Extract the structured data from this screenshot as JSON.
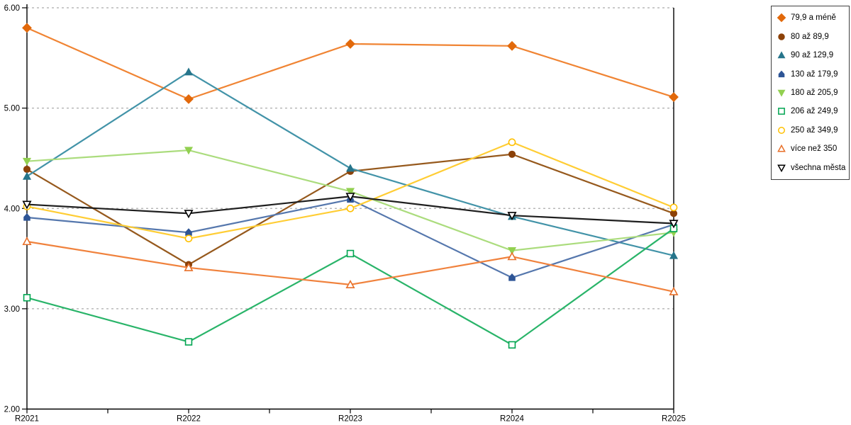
{
  "chart_data": {
    "type": "line",
    "title": "",
    "xlabel": "",
    "ylabel": "",
    "categories": [
      "R2021",
      "R2022",
      "R2023",
      "R2024",
      "R2025"
    ],
    "ylim": [
      2.0,
      6.0
    ],
    "ytick_step": 1.0,
    "ytick_labels": [
      "6.00",
      "5.00",
      "4.00",
      "3.00",
      "2.00"
    ],
    "grid": "horizontal-dashed",
    "gridline_color": "#ababab",
    "axis_color": "#000000",
    "legend_position": "top-right-outside",
    "series": [
      {
        "name": "79,9 a méně",
        "marker": "diamond",
        "marker_style": "filled",
        "marker_color": "#e2690b",
        "line_color": "#f08433",
        "values": [
          5.8,
          5.09,
          5.64,
          5.62,
          5.11
        ]
      },
      {
        "name": "80 až 89,9",
        "marker": "circle",
        "marker_style": "filled",
        "marker_color": "#8c4108",
        "line_color": "#96591d",
        "values": [
          4.39,
          3.44,
          4.37,
          4.54,
          3.95
        ]
      },
      {
        "name": "90 až 129,9",
        "marker": "triangle-up",
        "marker_style": "filled",
        "marker_color": "#26758b",
        "line_color": "#4293a8",
        "values": [
          4.32,
          5.36,
          4.4,
          3.92,
          3.53
        ]
      },
      {
        "name": "130 až 179,9",
        "marker": "pentagon-up",
        "marker_style": "filled",
        "marker_color": "#2e5596",
        "line_color": "#5577ad",
        "values": [
          3.91,
          3.76,
          4.09,
          3.31,
          3.84
        ]
      },
      {
        "name": "180 až 205,9",
        "marker": "triangle-down",
        "marker_style": "filled",
        "marker_color": "#92d050",
        "line_color": "#abdc7d",
        "values": [
          4.47,
          4.58,
          4.17,
          3.58,
          3.76
        ]
      },
      {
        "name": "206 až 249,9",
        "marker": "square",
        "marker_style": "open",
        "marker_color": "#00a551",
        "line_color": "#29b469",
        "values": [
          3.11,
          2.67,
          3.55,
          2.64,
          3.8
        ]
      },
      {
        "name": "250 až 349,9",
        "marker": "circle",
        "marker_style": "open",
        "marker_color": "#ffc000",
        "line_color": "#ffcd34",
        "values": [
          4.02,
          3.7,
          4.0,
          4.66,
          4.01
        ]
      },
      {
        "name": "více než 350",
        "marker": "triangle-up",
        "marker_style": "open",
        "marker_color": "#e8702a",
        "line_color": "#f0823d",
        "values": [
          3.67,
          3.41,
          3.24,
          3.52,
          3.17
        ]
      },
      {
        "name": "všechna města",
        "marker": "triangle-down",
        "marker_style": "open",
        "marker_color": "#000000",
        "line_color": "#1f1f1f",
        "values": [
          4.04,
          3.95,
          4.12,
          3.93,
          3.85
        ]
      }
    ]
  }
}
